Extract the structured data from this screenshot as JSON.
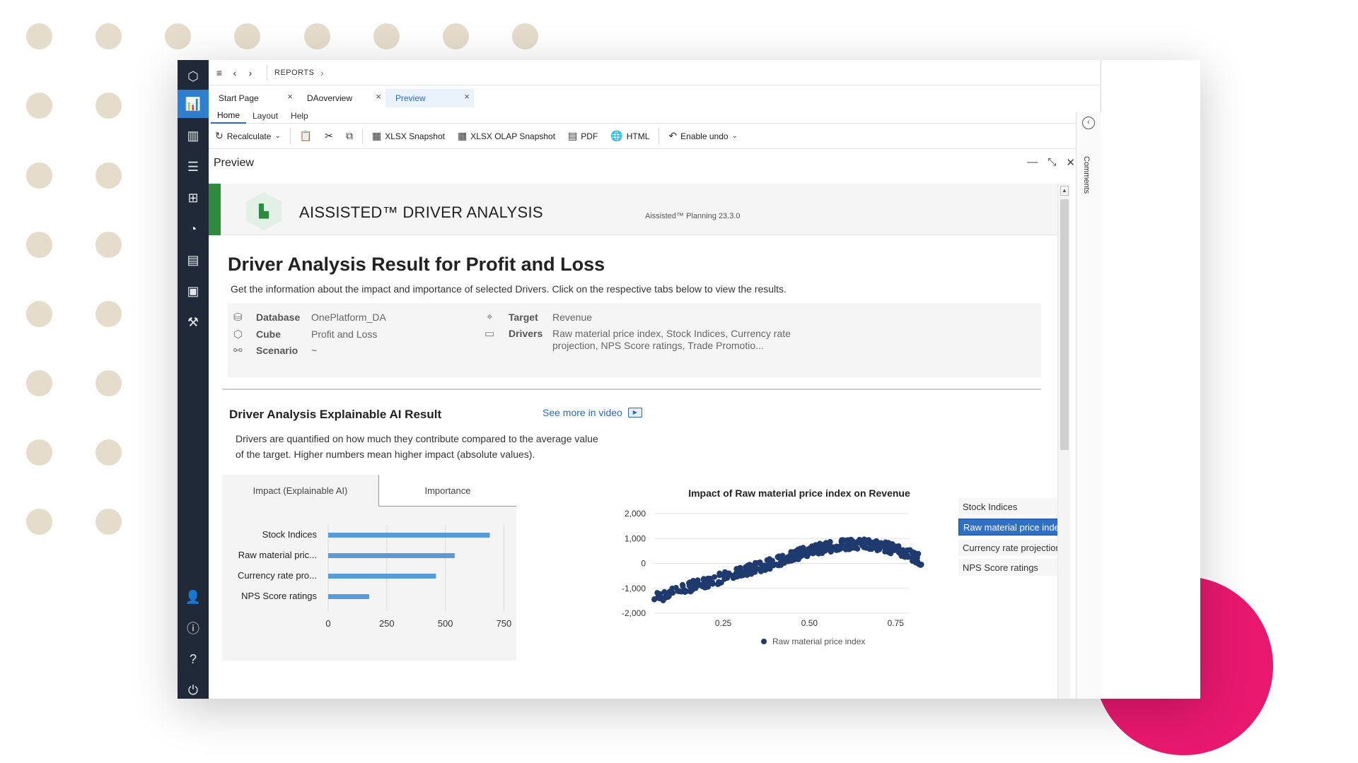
{
  "colors": {
    "accent": "#2f7fd1",
    "sidebar": "#1f2937",
    "green": "#2e8a3c",
    "bar": "#5b9bd5",
    "scatter": "#1f3a6e",
    "pink": "#e8186f",
    "dots": "#e5dccb"
  },
  "sidebar": {
    "icons": [
      "logo-hexagon-icon",
      "analytics-icon",
      "reports-icon",
      "models-icon",
      "hierarchy-icon",
      "timer-icon",
      "data-package-icon",
      "briefcase-icon",
      "wrench-icon",
      "user-icon",
      "info-icon",
      "help-icon",
      "power-icon"
    ]
  },
  "topbar": {
    "breadcrumb": "REPORTS"
  },
  "tabs": [
    {
      "label": "Start Page"
    },
    {
      "label": "DAoverview"
    },
    {
      "label": "Preview"
    }
  ],
  "ribbon_tabs": [
    {
      "label": "Home"
    },
    {
      "label": "Layout"
    },
    {
      "label": "Help"
    }
  ],
  "ribbon": {
    "recalculate": "Recalculate",
    "xlsx": "XLSX Snapshot",
    "xlsx_olap": "XLSX OLAP Snapshot",
    "pdf": "PDF",
    "html": "HTML",
    "undo": "Enable undo"
  },
  "pane": {
    "title": "Preview"
  },
  "comments": {
    "label": "Comments"
  },
  "header": {
    "title": "AISSISTED™ DRIVER ANALYSIS",
    "version": "Aissisted™ Planning 23.3.0"
  },
  "result": {
    "title": "Driver Analysis Result for Profit and Loss",
    "description": "Get the information about the impact and importance of selected Drivers. Click on the respective tabs below to view the results."
  },
  "info": {
    "database_label": "Database",
    "database_value": "OnePlatform_DA",
    "cube_label": "Cube",
    "cube_value": "Profit and Loss",
    "scenario_label": "Scenario",
    "scenario_value": "~",
    "target_label": "Target",
    "target_value": "Revenue",
    "drivers_label": "Drivers",
    "drivers_line1": "Raw material price index, Stock Indices, Currency rate",
    "drivers_line2": "projection, NPS Score ratings, Trade Promotio..."
  },
  "xai": {
    "title": "Driver Analysis Explainable AI Result",
    "see_more": "See more in video",
    "desc_line1": "Drivers are quantified on how much they contribute compared to the average value",
    "desc_line2": "of the target. Higher numbers mean higher impact (absolute values).",
    "tabs": [
      "Impact (Explainable AI)",
      "Importance"
    ]
  },
  "chart_data": [
    {
      "type": "bar",
      "orientation": "horizontal",
      "categories": [
        "Stock Indices",
        "Raw material pric...",
        "Currency rate pro...",
        "NPS Score ratings"
      ],
      "values": [
        690,
        540,
        460,
        175
      ],
      "xlim": [
        0,
        800
      ],
      "xticks": [
        0,
        250,
        500,
        750
      ]
    },
    {
      "type": "scatter",
      "title": "Impact of Raw material price index on Revenue",
      "series": [
        {
          "name": "Raw material price index"
        }
      ],
      "xlim": [
        0.05,
        0.85
      ],
      "ylim": [
        -2000,
        2000
      ],
      "xticks": [
        0.25,
        0.5,
        0.75
      ],
      "xtick_labels": [
        "0.25",
        "0.50",
        "0.75"
      ],
      "yticks": [
        2000,
        1000,
        0,
        -1000,
        -2000
      ],
      "ytick_labels": [
        "2,000",
        "1,000",
        "0",
        "-1,000",
        "-2,000"
      ],
      "trend": [
        [
          0.05,
          -1430
        ],
        [
          0.1,
          -1150
        ],
        [
          0.15,
          -950
        ],
        [
          0.2,
          -760
        ],
        [
          0.25,
          -560
        ],
        [
          0.3,
          -360
        ],
        [
          0.35,
          -160
        ],
        [
          0.4,
          40
        ],
        [
          0.45,
          300
        ],
        [
          0.5,
          500
        ],
        [
          0.55,
          650
        ],
        [
          0.6,
          760
        ],
        [
          0.65,
          800
        ],
        [
          0.7,
          720
        ],
        [
          0.75,
          550
        ],
        [
          0.8,
          300
        ],
        [
          0.83,
          80
        ]
      ],
      "legend": [
        "Stock Indices",
        "Raw material price index",
        "Currency rate projection",
        "NPS Score ratings"
      ],
      "legend_selected": "Raw material price index"
    }
  ]
}
